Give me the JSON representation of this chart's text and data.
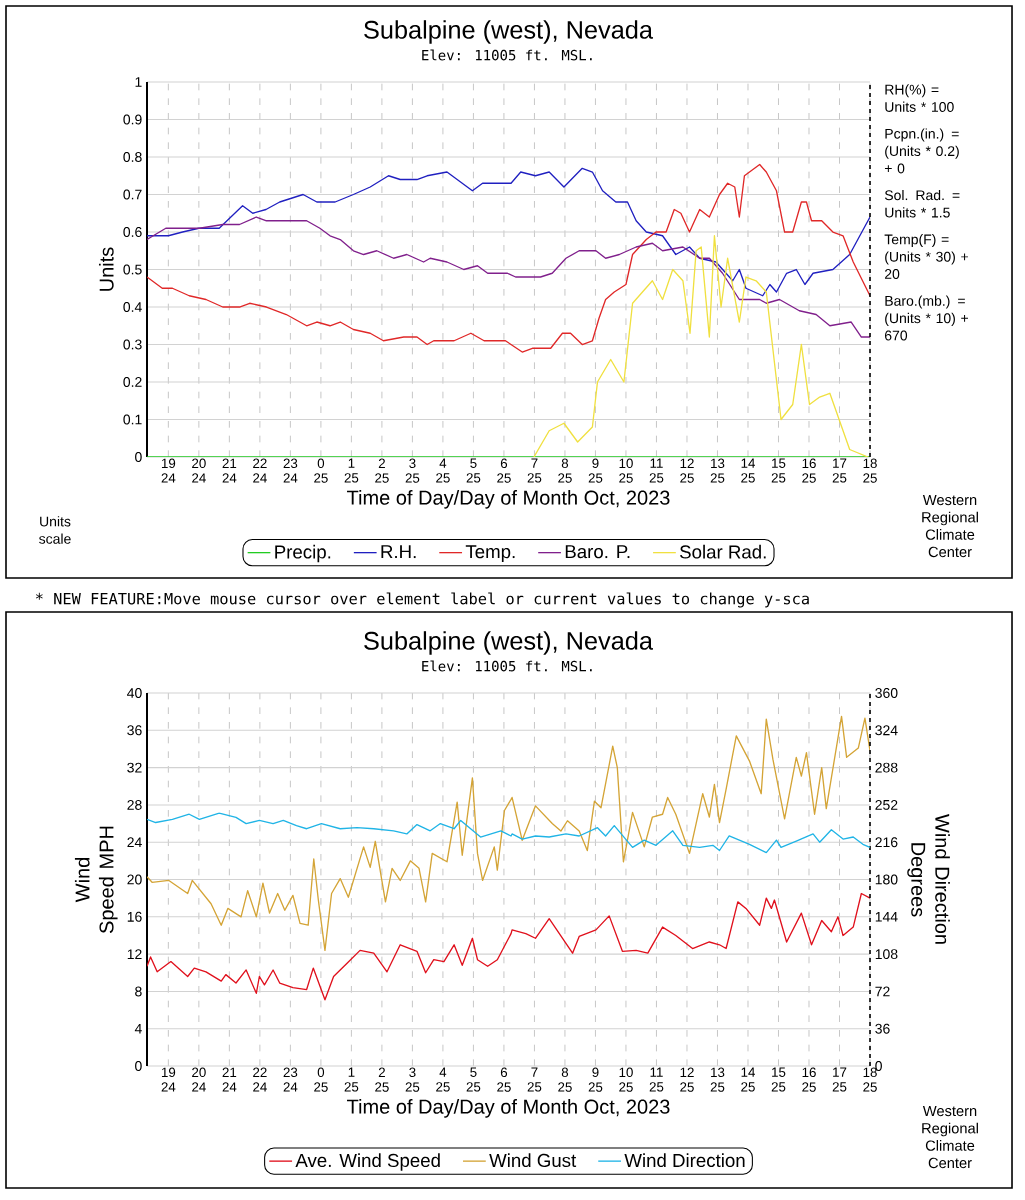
{
  "chart_data": [
    {
      "type": "line",
      "title": "Subalpine (west), Nevada",
      "subtitle": "Elev: 11005 ft. MSL.",
      "xlabel": "Time of Day/Day of Month Oct, 2023",
      "ylabel": "Units",
      "xlim": [
        "2023-10-24T18:18",
        "2023-10-25T18:00"
      ],
      "ylim": [
        0,
        1
      ],
      "xticks": [
        {
          "value": "2023-10-24T19:00",
          "label": "19 24"
        },
        {
          "value": "2023-10-24T20:00",
          "label": "20 24"
        },
        {
          "value": "2023-10-24T21:00",
          "label": "21 24"
        },
        {
          "value": "2023-10-24T22:00",
          "label": "22 24"
        },
        {
          "value": "2023-10-24T23:00",
          "label": "23 24"
        },
        {
          "value": "2023-10-25T00:00",
          "label": "0 25"
        },
        {
          "value": "2023-10-25T01:00",
          "label": "1 25"
        },
        {
          "value": "2023-10-25T02:00",
          "label": "2 25"
        },
        {
          "value": "2023-10-25T03:00",
          "label": "3 25"
        },
        {
          "value": "2023-10-25T04:00",
          "label": "4 25"
        },
        {
          "value": "2023-10-25T05:00",
          "label": "5 25"
        },
        {
          "value": "2023-10-25T06:00",
          "label": "6 25"
        },
        {
          "value": "2023-10-25T07:00",
          "label": "7 25"
        },
        {
          "value": "2023-10-25T08:00",
          "label": "8 25"
        },
        {
          "value": "2023-10-25T09:00",
          "label": "9 25"
        },
        {
          "value": "2023-10-25T10:00",
          "label": "10 25"
        },
        {
          "value": "2023-10-25T11:00",
          "label": "11 25"
        },
        {
          "value": "2023-10-25T12:00",
          "label": "12 25"
        },
        {
          "value": "2023-10-25T13:00",
          "label": "13 25"
        },
        {
          "value": "2023-10-25T14:00",
          "label": "14 25"
        },
        {
          "value": "2023-10-25T15:00",
          "label": "15 25"
        },
        {
          "value": "2023-10-25T16:00",
          "label": "16 25"
        },
        {
          "value": "2023-10-25T17:00",
          "label": "17 25"
        },
        {
          "value": "2023-10-25T18:00",
          "label": "18 25"
        }
      ],
      "yticks": [
        0,
        0.1,
        0.2,
        0.3,
        0.4,
        0.5,
        0.6,
        0.7,
        0.8,
        0.9,
        1
      ],
      "grid": true,
      "legend": "bottom",
      "series": [
        {
          "name": "Precip.",
          "color": "#22cc22",
          "x": [
            "2023-10-24T18:18",
            "2023-10-25T18:00"
          ],
          "values": [
            0,
            0
          ]
        },
        {
          "name": "R.H.",
          "color": "#2020c0",
          "x": [
            "2023-10-24T18:18",
            "2023-10-24T19:00",
            "2023-10-24T19:28",
            "2023-10-24T20:00",
            "2023-10-24T20:40",
            "2023-10-24T21:26",
            "2023-10-24T21:46",
            "2023-10-24T22:12",
            "2023-10-24T22:39",
            "2023-10-24T23:25",
            "2023-10-24T23:52",
            "2023-10-25T00:28",
            "2023-10-25T01:04",
            "2023-10-25T01:37",
            "2023-10-25T02:13",
            "2023-10-25T02:36",
            "2023-10-25T03:09",
            "2023-10-25T03:29",
            "2023-10-25T04:08",
            "2023-10-25T04:58",
            "2023-10-25T05:18",
            "2023-10-25T06:14",
            "2023-10-25T06:33",
            "2023-10-25T07:02",
            "2023-10-25T07:29",
            "2023-10-25T07:58",
            "2023-10-25T08:34",
            "2023-10-25T08:54",
            "2023-10-25T09:14",
            "2023-10-25T09:40",
            "2023-10-25T10:03",
            "2023-10-25T10:20",
            "2023-10-25T10:40",
            "2023-10-25T11:12",
            "2023-10-25T11:38",
            "2023-10-25T12:05",
            "2023-10-25T12:25",
            "2023-10-25T12:57",
            "2023-10-25T13:30",
            "2023-10-25T13:43",
            "2023-10-25T13:56",
            "2023-10-25T14:29",
            "2023-10-25T14:43",
            "2023-10-25T14:56",
            "2023-10-25T15:16",
            "2023-10-25T15:35",
            "2023-10-25T15:52",
            "2023-10-25T16:08",
            "2023-10-25T16:47",
            "2023-10-25T17:20",
            "2023-10-25T18:00"
          ],
          "values": [
            0.59,
            0.59,
            0.6,
            0.61,
            0.61,
            0.67,
            0.65,
            0.66,
            0.68,
            0.7,
            0.68,
            0.68,
            0.7,
            0.72,
            0.75,
            0.74,
            0.74,
            0.75,
            0.76,
            0.71,
            0.73,
            0.73,
            0.76,
            0.75,
            0.76,
            0.72,
            0.77,
            0.76,
            0.71,
            0.68,
            0.68,
            0.63,
            0.6,
            0.59,
            0.54,
            0.56,
            0.53,
            0.52,
            0.47,
            0.5,
            0.45,
            0.43,
            0.46,
            0.44,
            0.49,
            0.5,
            0.46,
            0.49,
            0.5,
            0.54,
            0.64
          ]
        },
        {
          "name": "Temp.",
          "color": "#e02828",
          "x": [
            "2023-10-24T18:18",
            "2023-10-24T18:48",
            "2023-10-24T19:08",
            "2023-10-24T19:41",
            "2023-10-24T20:14",
            "2023-10-24T20:47",
            "2023-10-24T21:20",
            "2023-10-24T21:40",
            "2023-10-24T22:13",
            "2023-10-24T22:52",
            "2023-10-24T23:32",
            "2023-10-24T23:52",
            "2023-10-25T00:18",
            "2023-10-25T00:38",
            "2023-10-25T01:04",
            "2023-10-25T01:37",
            "2023-10-25T02:03",
            "2023-10-25T02:43",
            "2023-10-25T03:09",
            "2023-10-25T03:29",
            "2023-10-25T03:42",
            "2023-10-25T04:22",
            "2023-10-25T04:55",
            "2023-10-25T05:21",
            "2023-10-25T06:03",
            "2023-10-25T06:36",
            "2023-10-25T06:56",
            "2023-10-25T07:32",
            "2023-10-25T07:55",
            "2023-10-25T08:11",
            "2023-10-25T08:34",
            "2023-10-25T08:54",
            "2023-10-25T09:07",
            "2023-10-25T09:20",
            "2023-10-25T09:37",
            "2023-10-25T10:00",
            "2023-10-25T10:13",
            "2023-10-25T10:40",
            "2023-10-25T10:59",
            "2023-10-25T11:19",
            "2023-10-25T11:35",
            "2023-10-25T11:48",
            "2023-10-25T12:05",
            "2023-10-25T12:25",
            "2023-10-25T12:44",
            "2023-10-25T13:04",
            "2023-10-25T13:20",
            "2023-10-25T13:34",
            "2023-10-25T13:43",
            "2023-10-25T13:53",
            "2023-10-25T14:23",
            "2023-10-25T14:36",
            "2023-10-25T14:56",
            "2023-10-25T15:12",
            "2023-10-25T15:28",
            "2023-10-25T15:45",
            "2023-10-25T15:55",
            "2023-10-25T16:05",
            "2023-10-25T16:25",
            "2023-10-25T16:47",
            "2023-10-25T17:07",
            "2023-10-25T17:27",
            "2023-10-25T18:00"
          ],
          "values": [
            0.48,
            0.45,
            0.45,
            0.43,
            0.42,
            0.4,
            0.4,
            0.41,
            0.4,
            0.38,
            0.35,
            0.36,
            0.35,
            0.36,
            0.34,
            0.33,
            0.31,
            0.32,
            0.32,
            0.3,
            0.31,
            0.31,
            0.33,
            0.31,
            0.31,
            0.28,
            0.29,
            0.29,
            0.33,
            0.33,
            0.3,
            0.31,
            0.37,
            0.42,
            0.44,
            0.46,
            0.54,
            0.58,
            0.6,
            0.6,
            0.66,
            0.65,
            0.6,
            0.66,
            0.64,
            0.7,
            0.73,
            0.72,
            0.64,
            0.75,
            0.78,
            0.76,
            0.71,
            0.6,
            0.6,
            0.68,
            0.68,
            0.63,
            0.63,
            0.6,
            0.59,
            0.52,
            0.43
          ]
        },
        {
          "name": "Baro. P.",
          "color": "#80208c",
          "x": [
            "2023-10-24T18:18",
            "2023-10-24T18:55",
            "2023-10-24T20:01",
            "2023-10-24T20:47",
            "2023-10-24T21:20",
            "2023-10-24T21:53",
            "2023-10-24T22:13",
            "2023-10-24T22:52",
            "2023-10-24T23:32",
            "2023-10-24T23:58",
            "2023-10-25T00:18",
            "2023-10-25T00:38",
            "2023-10-25T01:04",
            "2023-10-25T01:24",
            "2023-10-25T01:50",
            "2023-10-25T02:23",
            "2023-10-25T02:49",
            "2023-10-25T03:22",
            "2023-10-25T03:35",
            "2023-10-25T04:08",
            "2023-10-25T04:41",
            "2023-10-25T05:08",
            "2023-10-25T05:28",
            "2023-10-25T06:07",
            "2023-10-25T06:23",
            "2023-10-25T06:43",
            "2023-10-25T07:12",
            "2023-10-25T07:35",
            "2023-10-25T08:02",
            "2023-10-25T08:28",
            "2023-10-25T09:01",
            "2023-10-25T09:20",
            "2023-10-25T09:47",
            "2023-10-25T10:20",
            "2023-10-25T10:52",
            "2023-10-25T11:12",
            "2023-10-25T11:52",
            "2023-10-25T12:25",
            "2023-10-25T12:44",
            "2023-10-25T13:10",
            "2023-10-25T13:43",
            "2023-10-25T14:23",
            "2023-10-25T14:36",
            "2023-10-25T15:02",
            "2023-10-25T15:41",
            "2023-10-25T16:14",
            "2023-10-25T16:41",
            "2023-10-25T17:23",
            "2023-10-25T17:43",
            "2023-10-25T18:00"
          ],
          "values": [
            0.58,
            0.61,
            0.61,
            0.62,
            0.62,
            0.64,
            0.63,
            0.63,
            0.63,
            0.61,
            0.59,
            0.58,
            0.55,
            0.54,
            0.55,
            0.53,
            0.54,
            0.52,
            0.53,
            0.52,
            0.5,
            0.51,
            0.49,
            0.49,
            0.48,
            0.48,
            0.48,
            0.49,
            0.53,
            0.55,
            0.55,
            0.53,
            0.54,
            0.56,
            0.57,
            0.55,
            0.56,
            0.53,
            0.53,
            0.49,
            0.42,
            0.42,
            0.41,
            0.42,
            0.39,
            0.38,
            0.35,
            0.36,
            0.32,
            0.32
          ]
        },
        {
          "name": "Solar Rad.",
          "color": "#f0e040",
          "x": [
            "2023-10-25T06:59",
            "2023-10-25T07:29",
            "2023-10-25T07:58",
            "2023-10-25T08:25",
            "2023-10-25T08:54",
            "2023-10-25T09:04",
            "2023-10-25T09:30",
            "2023-10-25T09:56",
            "2023-10-25T10:13",
            "2023-10-25T10:52",
            "2023-10-25T11:12",
            "2023-10-25T11:32",
            "2023-10-25T11:52",
            "2023-10-25T12:06",
            "2023-10-25T12:18",
            "2023-10-25T12:28",
            "2023-10-25T12:44",
            "2023-10-25T12:54",
            "2023-10-25T13:07",
            "2023-10-25T13:20",
            "2023-10-25T13:43",
            "2023-10-25T13:56",
            "2023-10-25T14:16",
            "2023-10-25T14:36",
            "2023-10-25T15:05",
            "2023-10-25T15:28",
            "2023-10-25T15:45",
            "2023-10-25T16:01",
            "2023-10-25T16:21",
            "2023-10-25T16:41",
            "2023-10-25T17:20",
            "2023-10-25T17:56"
          ],
          "values": [
            0,
            0.07,
            0.09,
            0.04,
            0.08,
            0.2,
            0.26,
            0.2,
            0.41,
            0.47,
            0.42,
            0.5,
            0.47,
            0.33,
            0.55,
            0.56,
            0.32,
            0.59,
            0.4,
            0.53,
            0.36,
            0.48,
            0.47,
            0.44,
            0.1,
            0.14,
            0.3,
            0.14,
            0.16,
            0.17,
            0.02,
            0
          ]
        }
      ],
      "annotations": [
        "RH(%) = Units * 100",
        "Pcpn.(in.) = (Units * 0.2) + 0",
        "Sol. Rad. = Units * 1.5",
        "Temp(F) = (Units * 30) + 20",
        "Baro.(mb.) = (Units * 10) + 670",
        "Units scale",
        "Western Regional Climate Center",
        "* NEW FEATURE:Move mouse cursor over element label or current values to change y-sca"
      ]
    },
    {
      "type": "line",
      "title": "Subalpine (west), Nevada",
      "subtitle": "Elev: 11005 ft. MSL.",
      "xlabel": "Time of Day/Day of Month Oct, 2023",
      "ylabel": "Wind Speed MPH",
      "y2label": "Wind Direction Degrees",
      "xlim": [
        "2023-10-24T18:18",
        "2023-10-25T18:00"
      ],
      "ylim": [
        0,
        40
      ],
      "y2lim": [
        0,
        360
      ],
      "xticks": [
        {
          "value": "2023-10-24T19:00",
          "label": "19 24"
        },
        {
          "value": "2023-10-24T20:00",
          "label": "20 24"
        },
        {
          "value": "2023-10-24T21:00",
          "label": "21 24"
        },
        {
          "value": "2023-10-24T22:00",
          "label": "22 24"
        },
        {
          "value": "2023-10-24T23:00",
          "label": "23 24"
        },
        {
          "value": "2023-10-25T00:00",
          "label": "0 25"
        },
        {
          "value": "2023-10-25T01:00",
          "label": "1 25"
        },
        {
          "value": "2023-10-25T02:00",
          "label": "2 25"
        },
        {
          "value": "2023-10-25T03:00",
          "label": "3 25"
        },
        {
          "value": "2023-10-25T04:00",
          "label": "4 25"
        },
        {
          "value": "2023-10-25T05:00",
          "label": "5 25"
        },
        {
          "value": "2023-10-25T06:00",
          "label": "6 25"
        },
        {
          "value": "2023-10-25T07:00",
          "label": "7 25"
        },
        {
          "value": "2023-10-25T08:00",
          "label": "8 25"
        },
        {
          "value": "2023-10-25T09:00",
          "label": "9 25"
        },
        {
          "value": "2023-10-25T10:00",
          "label": "10 25"
        },
        {
          "value": "2023-10-25T11:00",
          "label": "11 25"
        },
        {
          "value": "2023-10-25T12:00",
          "label": "12 25"
        },
        {
          "value": "2023-10-25T13:00",
          "label": "13 25"
        },
        {
          "value": "2023-10-25T14:00",
          "label": "14 25"
        },
        {
          "value": "2023-10-25T15:00",
          "label": "15 25"
        },
        {
          "value": "2023-10-25T16:00",
          "label": "16 25"
        },
        {
          "value": "2023-10-25T17:00",
          "label": "17 25"
        },
        {
          "value": "2023-10-25T18:00",
          "label": "18 25"
        }
      ],
      "yticks": [
        0,
        4,
        8,
        12,
        16,
        20,
        24,
        28,
        32,
        36,
        40
      ],
      "y2ticks": [
        0,
        36,
        72,
        108,
        144,
        180,
        216,
        252,
        288,
        324,
        360
      ],
      "grid": true,
      "legend": "bottom",
      "series": [
        {
          "name": "Ave. Wind Speed",
          "color": "#e0101c",
          "x": [
            "2023-10-24T18:18",
            "2023-10-24T18:25",
            "2023-10-24T18:38",
            "2023-10-24T19:05",
            "2023-10-24T19:38",
            "2023-10-24T19:51",
            "2023-10-24T20:14",
            "2023-10-24T20:44",
            "2023-10-24T20:53",
            "2023-10-24T21:13",
            "2023-10-24T21:33",
            "2023-10-24T21:53",
            "2023-10-24T21:59",
            "2023-10-24T22:09",
            "2023-10-24T22:26",
            "2023-10-24T22:39",
            "2023-10-24T23:05",
            "2023-10-24T23:32",
            "2023-10-24T23:45",
            "2023-10-25T00:08",
            "2023-10-25T00:25",
            "2023-10-25T00:51",
            "2023-10-25T01:17",
            "2023-10-25T01:44",
            "2023-10-25T02:10",
            "2023-10-25T02:36",
            "2023-10-25T03:09",
            "2023-10-25T03:26",
            "2023-10-25T03:42",
            "2023-10-25T04:02",
            "2023-10-25T04:22",
            "2023-10-25T04:38",
            "2023-10-25T04:58",
            "2023-10-25T05:08",
            "2023-10-25T05:28",
            "2023-10-25T05:47",
            "2023-10-25T06:14",
            "2023-10-25T06:16",
            "2023-10-25T06:43",
            "2023-10-25T07:02",
            "2023-10-25T07:29",
            "2023-10-25T07:49",
            "2023-10-25T08:15",
            "2023-10-25T08:28",
            "2023-10-25T09:01",
            "2023-10-25T09:27",
            "2023-10-25T09:53",
            "2023-10-25T10:20",
            "2023-10-25T10:43",
            "2023-10-25T11:12",
            "2023-10-25T11:38",
            "2023-10-25T12:11",
            "2023-10-25T12:44",
            "2023-10-25T13:04",
            "2023-10-25T13:17",
            "2023-10-25T13:40",
            "2023-10-25T13:56",
            "2023-10-25T14:23",
            "2023-10-25T14:36",
            "2023-10-25T14:46",
            "2023-10-25T14:52",
            "2023-10-25T15:16",
            "2023-10-25T15:45",
            "2023-10-25T16:05",
            "2023-10-25T16:25",
            "2023-10-25T16:44",
            "2023-10-25T16:57",
            "2023-10-25T17:07",
            "2023-10-25T17:27",
            "2023-10-25T17:43",
            "2023-10-25T18:00"
          ],
          "values": [
            10.7,
            11.7,
            10.1,
            11.2,
            9.6,
            10.5,
            10.1,
            9.1,
            9.8,
            8.9,
            10.3,
            7.8,
            9.6,
            8.7,
            10.3,
            8.9,
            8.4,
            8.2,
            10.5,
            7.1,
            9.6,
            11,
            12.4,
            12.1,
            10.1,
            13,
            12.3,
            10,
            11.4,
            11.2,
            13,
            10.8,
            13.7,
            11.4,
            10.7,
            11.4,
            14.2,
            14.6,
            14.2,
            13.7,
            15.8,
            14.2,
            12.1,
            13.9,
            14.6,
            16.1,
            12.3,
            12.4,
            12.1,
            14.9,
            14,
            12.6,
            13.3,
            13,
            12.6,
            17.6,
            16.9,
            15.1,
            18,
            16.9,
            17.8,
            13.3,
            16.4,
            13,
            15.6,
            14.4,
            16,
            14,
            14.9,
            18.5,
            18
          ]
        },
        {
          "name": "Wind Gust",
          "color": "#d4a436",
          "x": [
            "2023-10-24T18:18",
            "2023-10-24T18:28",
            "2023-10-24T19:01",
            "2023-10-24T19:38",
            "2023-10-24T19:47",
            "2023-10-24T20:24",
            "2023-10-24T20:44",
            "2023-10-24T20:57",
            "2023-10-24T21:23",
            "2023-10-24T21:36",
            "2023-10-24T21:53",
            "2023-10-24T22:06",
            "2023-10-24T22:19",
            "2023-10-24T22:35",
            "2023-10-24T22:49",
            "2023-10-24T23:05",
            "2023-10-24T23:19",
            "2023-10-24T23:35",
            "2023-10-24T23:46",
            "2023-10-24T23:55",
            "2023-10-25T00:08",
            "2023-10-25T00:21",
            "2023-10-25T00:38",
            "2023-10-25T00:54",
            "2023-10-25T01:24",
            "2023-10-25T01:37",
            "2023-10-25T01:47",
            "2023-10-25T02:07",
            "2023-10-25T02:20",
            "2023-10-25T02:36",
            "2023-10-25T02:56",
            "2023-10-25T03:13",
            "2023-10-25T03:26",
            "2023-10-25T03:39",
            "2023-10-25T04:08",
            "2023-10-25T04:28",
            "2023-10-25T04:38",
            "2023-10-25T04:58",
            "2023-10-25T05:08",
            "2023-10-25T05:18",
            "2023-10-25T05:41",
            "2023-10-25T05:47",
            "2023-10-25T06:01",
            "2023-10-25T06:14",
            "2023-10-25T06:16",
            "2023-10-25T06:36",
            "2023-10-25T07:02",
            "2023-10-25T07:35",
            "2023-10-25T07:52",
            "2023-10-25T08:05",
            "2023-10-25T08:28",
            "2023-10-25T08:44",
            "2023-10-25T08:58",
            "2023-10-25T09:11",
            "2023-10-25T09:34",
            "2023-10-25T09:43",
            "2023-10-25T09:55",
            "2023-10-25T10:13",
            "2023-10-25T10:36",
            "2023-10-25T10:52",
            "2023-10-25T11:12",
            "2023-10-25T11:22",
            "2023-10-25T11:38",
            "2023-10-25T12:05",
            "2023-10-25T12:18",
            "2023-10-25T12:31",
            "2023-10-25T12:44",
            "2023-10-25T12:54",
            "2023-10-25T13:04",
            "2023-10-25T13:17",
            "2023-10-25T13:37",
            "2023-10-25T14:03",
            "2023-10-25T14:26",
            "2023-10-25T14:36",
            "2023-10-25T14:49",
            "2023-10-25T15:12",
            "2023-10-25T15:35",
            "2023-10-25T15:45",
            "2023-10-25T15:55",
            "2023-10-25T16:11",
            "2023-10-25T16:25",
            "2023-10-25T16:34",
            "2023-10-25T17:04",
            "2023-10-25T17:14",
            "2023-10-25T17:37",
            "2023-10-25T17:50",
            "2023-10-25T18:00"
          ],
          "values": [
            20.3,
            19.7,
            19.9,
            18.5,
            19.9,
            17.4,
            15.1,
            16.9,
            16,
            18.8,
            16,
            19.6,
            16.4,
            18.5,
            16.7,
            18.3,
            15.3,
            15.1,
            22.2,
            17.8,
            12.4,
            18.5,
            20.1,
            18.1,
            23.5,
            21.3,
            24.1,
            17.6,
            21.2,
            19.9,
            22,
            21.2,
            17.6,
            22.8,
            21.9,
            28.3,
            22.6,
            30.9,
            22.8,
            19.9,
            23.5,
            21,
            27.4,
            28.6,
            28.8,
            24.2,
            27.9,
            26,
            25.2,
            26.3,
            25.2,
            23.1,
            28.4,
            27.7,
            34.3,
            32,
            21.9,
            27.2,
            23.5,
            26.7,
            27,
            28.8,
            27,
            22.8,
            26,
            29.2,
            26.7,
            30.2,
            26.1,
            29.7,
            35.4,
            32.7,
            29.2,
            37.2,
            32.9,
            26.5,
            33.1,
            31.1,
            33.6,
            27,
            32,
            27.6,
            37.5,
            33.1,
            34.1,
            37.3,
            33.8
          ]
        },
        {
          "name": "Wind Direction",
          "color": "#20b4e6",
          "axis": "y2",
          "x": [
            "2023-10-24T18:18",
            "2023-10-24T18:35",
            "2023-10-24T19:08",
            "2023-10-24T19:41",
            "2023-10-24T20:01",
            "2023-10-24T20:40",
            "2023-10-24T21:13",
            "2023-10-24T21:33",
            "2023-10-24T21:59",
            "2023-10-24T22:26",
            "2023-10-24T22:46",
            "2023-10-24T23:12",
            "2023-10-24T23:32",
            "2023-10-25T00:01",
            "2023-10-25T00:38",
            "2023-10-25T01:11",
            "2023-10-25T01:44",
            "2023-10-25T02:23",
            "2023-10-25T02:49",
            "2023-10-25T03:09",
            "2023-10-25T03:35",
            "2023-10-25T03:55",
            "2023-10-25T04:22",
            "2023-10-25T04:35",
            "2023-10-25T05:14",
            "2023-10-25T05:54",
            "2023-10-25T06:14",
            "2023-10-25T06:16",
            "2023-10-25T06:36",
            "2023-10-25T07:02",
            "2023-10-25T07:29",
            "2023-10-25T08:02",
            "2023-10-25T08:28",
            "2023-10-25T09:04",
            "2023-10-25T09:20",
            "2023-10-25T09:37",
            "2023-10-25T10:13",
            "2023-10-25T10:36",
            "2023-10-25T10:59",
            "2023-10-25T11:32",
            "2023-10-25T11:52",
            "2023-10-25T12:25",
            "2023-10-25T12:51",
            "2023-10-25T13:04",
            "2023-10-25T13:23",
            "2023-10-25T14:03",
            "2023-10-25T14:36",
            "2023-10-25T14:56",
            "2023-10-25T15:05",
            "2023-10-25T15:35",
            "2023-10-25T16:08",
            "2023-10-25T16:21",
            "2023-10-25T16:44",
            "2023-10-25T17:07",
            "2023-10-25T17:27",
            "2023-10-25T17:46",
            "2023-10-25T18:00"
          ],
          "values": [
            238,
            235,
            238,
            243,
            238,
            244,
            240,
            234,
            237,
            234,
            237,
            232,
            229,
            234,
            229,
            230,
            229,
            227,
            224,
            233,
            227,
            234,
            229,
            237,
            221,
            227,
            222,
            224,
            219,
            222,
            221,
            224,
            222,
            230,
            222,
            232,
            211,
            218,
            213,
            227,
            213,
            211,
            213,
            208,
            222,
            214,
            206,
            218,
            211,
            217,
            224,
            216,
            228,
            219,
            221,
            214,
            211
          ]
        }
      ],
      "annotations": [
        "Western Regional Climate Center"
      ]
    }
  ]
}
